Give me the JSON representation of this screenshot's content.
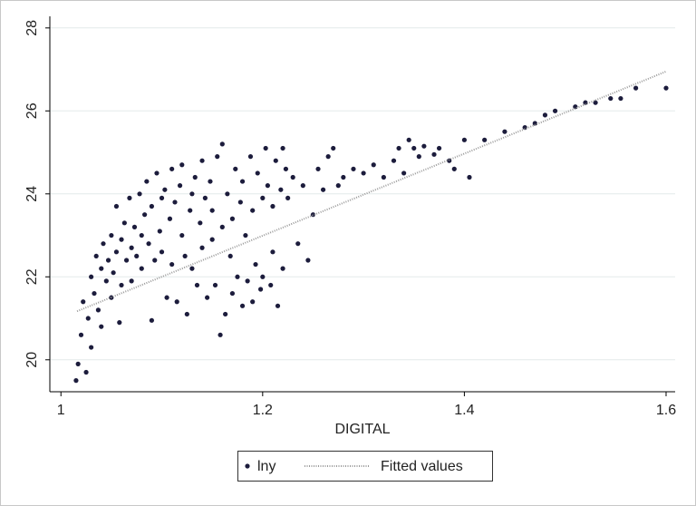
{
  "chart_data": {
    "type": "scatter",
    "xlabel": "DIGITAL",
    "xlim": [
      0.989,
      1.609
    ],
    "ylim": [
      19.23,
      28.28
    ],
    "xticks": [
      1,
      1.2,
      1.4,
      1.6
    ],
    "yticks": [
      20,
      22,
      24,
      26,
      28
    ],
    "grid": true,
    "legend": "bottom",
    "series": [
      {
        "name": "lny",
        "type": "scatter",
        "color": "#1c1c3c",
        "x": [
          1.015,
          1.017,
          1.02,
          1.022,
          1.025,
          1.027,
          1.03,
          1.03,
          1.033,
          1.035,
          1.037,
          1.04,
          1.04,
          1.042,
          1.045,
          1.047,
          1.05,
          1.05,
          1.052,
          1.055,
          1.055,
          1.058,
          1.06,
          1.06,
          1.063,
          1.065,
          1.068,
          1.07,
          1.07,
          1.073,
          1.075,
          1.078,
          1.08,
          1.08,
          1.083,
          1.085,
          1.087,
          1.09,
          1.09,
          1.093,
          1.095,
          1.098,
          1.1,
          1.1,
          1.103,
          1.105,
          1.108,
          1.11,
          1.11,
          1.113,
          1.115,
          1.118,
          1.12,
          1.12,
          1.123,
          1.125,
          1.128,
          1.13,
          1.13,
          1.133,
          1.135,
          1.138,
          1.14,
          1.14,
          1.143,
          1.145,
          1.148,
          1.15,
          1.15,
          1.153,
          1.155,
          1.158,
          1.16,
          1.16,
          1.163,
          1.165,
          1.168,
          1.17,
          1.17,
          1.173,
          1.175,
          1.178,
          1.18,
          1.18,
          1.183,
          1.185,
          1.188,
          1.19,
          1.19,
          1.193,
          1.195,
          1.198,
          1.2,
          1.2,
          1.203,
          1.205,
          1.208,
          1.21,
          1.21,
          1.213,
          1.215,
          1.218,
          1.22,
          1.22,
          1.223,
          1.225,
          1.23,
          1.235,
          1.24,
          1.245,
          1.25,
          1.255,
          1.26,
          1.265,
          1.27,
          1.275,
          1.28,
          1.29,
          1.3,
          1.31,
          1.32,
          1.33,
          1.335,
          1.34,
          1.345,
          1.35,
          1.355,
          1.36,
          1.37,
          1.375,
          1.385,
          1.39,
          1.4,
          1.405,
          1.42,
          1.44,
          1.46,
          1.47,
          1.48,
          1.49,
          1.51,
          1.52,
          1.53,
          1.545,
          1.555,
          1.57,
          1.6
        ],
        "values": [
          19.5,
          19.9,
          20.6,
          21.4,
          19.7,
          21.0,
          22.0,
          20.3,
          21.6,
          22.5,
          21.2,
          22.2,
          20.8,
          22.8,
          21.9,
          22.4,
          23.0,
          21.5,
          22.1,
          23.7,
          22.6,
          20.9,
          22.9,
          21.8,
          23.3,
          22.4,
          23.9,
          22.7,
          21.9,
          23.2,
          22.5,
          24.0,
          23.0,
          22.2,
          23.5,
          24.3,
          22.8,
          23.7,
          20.95,
          22.4,
          24.5,
          23.1,
          23.9,
          22.6,
          24.1,
          21.5,
          23.4,
          24.6,
          22.3,
          23.8,
          21.4,
          24.2,
          23.0,
          24.7,
          22.5,
          21.1,
          23.6,
          24.0,
          22.2,
          24.4,
          21.8,
          23.3,
          24.8,
          22.7,
          23.9,
          21.5,
          24.3,
          22.9,
          23.6,
          21.8,
          24.9,
          20.6,
          23.2,
          25.2,
          21.1,
          24.0,
          22.5,
          23.4,
          21.6,
          24.6,
          22.0,
          23.8,
          21.3,
          24.3,
          23.0,
          21.9,
          24.9,
          23.6,
          21.4,
          22.3,
          24.5,
          21.7,
          23.9,
          22.0,
          25.1,
          24.2,
          21.8,
          23.7,
          22.6,
          24.8,
          21.3,
          24.1,
          25.1,
          22.2,
          24.6,
          23.9,
          24.4,
          22.8,
          24.2,
          22.4,
          23.5,
          24.6,
          24.1,
          24.9,
          25.1,
          24.2,
          24.4,
          24.6,
          24.5,
          24.7,
          24.4,
          24.8,
          25.1,
          24.5,
          25.3,
          25.1,
          24.9,
          25.15,
          24.95,
          25.1,
          24.8,
          24.6,
          25.3,
          24.4,
          25.3,
          25.5,
          25.6,
          25.7,
          25.9,
          26.0,
          26.1,
          26.2,
          26.2,
          26.3,
          26.3,
          26.55,
          26.55
        ]
      },
      {
        "name": "Fitted values",
        "type": "line",
        "color": "#9a9a9a",
        "x": [
          1.016,
          1.6
        ],
        "values": [
          21.17,
          26.95
        ]
      }
    ]
  }
}
